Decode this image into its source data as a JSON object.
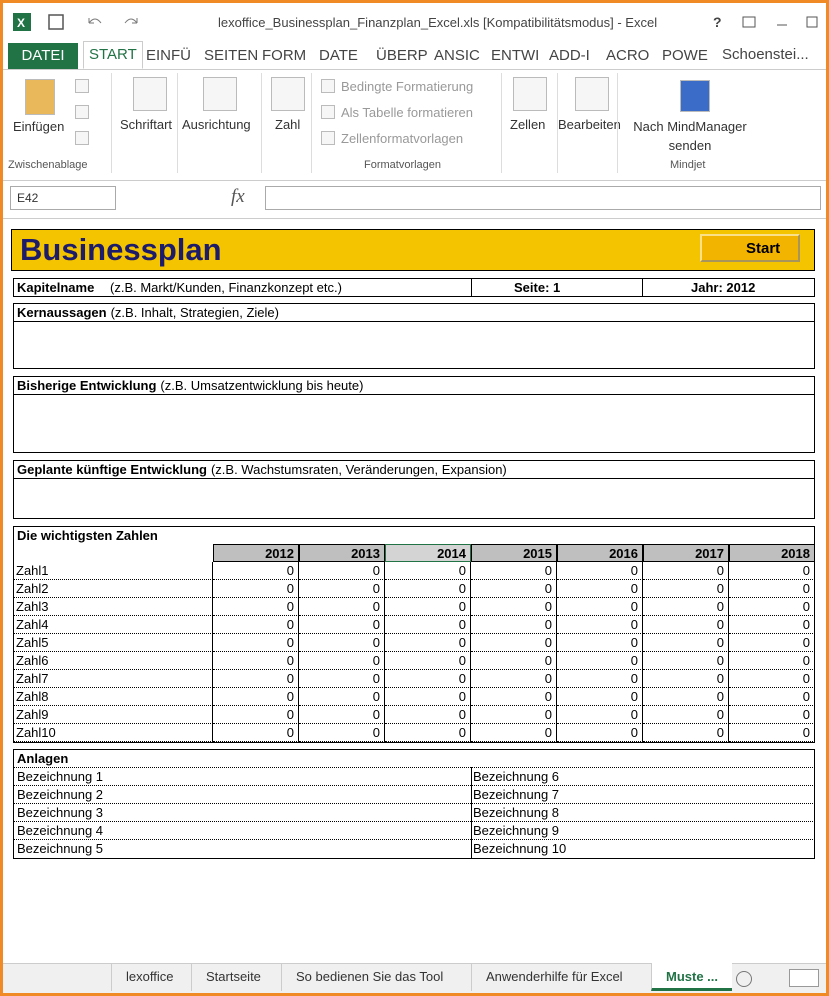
{
  "titlebar": {
    "title": "lexoffice_Businessplan_Finanzplan_Excel.xls  [Kompatibilitätsmodus] - Excel",
    "help": "?"
  },
  "ribbon_tabs": [
    "DATEI",
    "START",
    "EINFÜ",
    "SEITEN",
    "FORM",
    "DATE",
    "ÜBERP",
    "ANSIC",
    "ENTWI",
    "ADD-I",
    "ACRO",
    "POWE"
  ],
  "user": "Schoenstei...",
  "ribbon": {
    "paste": "Einfügen",
    "font": "Schriftart",
    "alignment": "Ausrichtung",
    "number": "Zahl",
    "conditional": "Bedingte Formatierung",
    "as_table": "Als Tabelle formatieren",
    "cell_styles": "Zellenformatvorlagen",
    "cells": "Zellen",
    "editing": "Bearbeiten",
    "mindmanager": "Nach MindManager senden",
    "group_clipboard": "Zwischenablage",
    "group_styles": "Formatvorlagen",
    "group_mindjet": "Mindjet"
  },
  "formula_bar": {
    "name_box": "E42",
    "fx": "fx"
  },
  "sheet": {
    "title": "Businessplan",
    "start_button": "Start",
    "kapitel_label": "Kapitelname",
    "kapitel_hint": "(z.B. Markt/Kunden, Finanzkonzept etc.)",
    "seite": "Seite: 1",
    "jahr": "Jahr: 2012",
    "sections": [
      {
        "label": "Kernaussagen",
        "hint": "(z.B. Inhalt, Strategien, Ziele)"
      },
      {
        "label": "Bisherige Entwicklung",
        "hint": "(z.B. Umsatzentwicklung bis heute)"
      },
      {
        "label": "Geplante künftige Entwicklung",
        "hint": "(z.B. Wachstumsraten, Veränderungen, Expansion)"
      }
    ],
    "numbers": {
      "title": "Die wichtigsten Zahlen",
      "years": [
        2012,
        2013,
        2014,
        2015,
        2016,
        2017,
        2018
      ],
      "rows": [
        {
          "label": "Zahl1",
          "values": [
            0,
            0,
            0,
            0,
            0,
            0,
            0
          ]
        },
        {
          "label": "Zahl2",
          "values": [
            0,
            0,
            0,
            0,
            0,
            0,
            0
          ]
        },
        {
          "label": "Zahl3",
          "values": [
            0,
            0,
            0,
            0,
            0,
            0,
            0
          ]
        },
        {
          "label": "Zahl4",
          "values": [
            0,
            0,
            0,
            0,
            0,
            0,
            0
          ]
        },
        {
          "label": "Zahl5",
          "values": [
            0,
            0,
            0,
            0,
            0,
            0,
            0
          ]
        },
        {
          "label": "Zahl6",
          "values": [
            0,
            0,
            0,
            0,
            0,
            0,
            0
          ]
        },
        {
          "label": "Zahl7",
          "values": [
            0,
            0,
            0,
            0,
            0,
            0,
            0
          ]
        },
        {
          "label": "Zahl8",
          "values": [
            0,
            0,
            0,
            0,
            0,
            0,
            0
          ]
        },
        {
          "label": "Zahl9",
          "values": [
            0,
            0,
            0,
            0,
            0,
            0,
            0
          ]
        },
        {
          "label": "Zahl10",
          "values": [
            0,
            0,
            0,
            0,
            0,
            0,
            0
          ]
        }
      ]
    },
    "anlagen": {
      "title": "Anlagen",
      "items": [
        "Bezeichnung 1",
        "Bezeichnung 2",
        "Bezeichnung 3",
        "Bezeichnung 4",
        "Bezeichnung 5",
        "Bezeichnung 6",
        "Bezeichnung 7",
        "Bezeichnung 8",
        "Bezeichnung 9",
        "Bezeichnung 10"
      ]
    }
  },
  "sheet_tabs": [
    "lexoffice",
    "Startseite",
    "So bedienen Sie das Tool",
    "Anwenderhilfe für Excel",
    "Muste ..."
  ]
}
